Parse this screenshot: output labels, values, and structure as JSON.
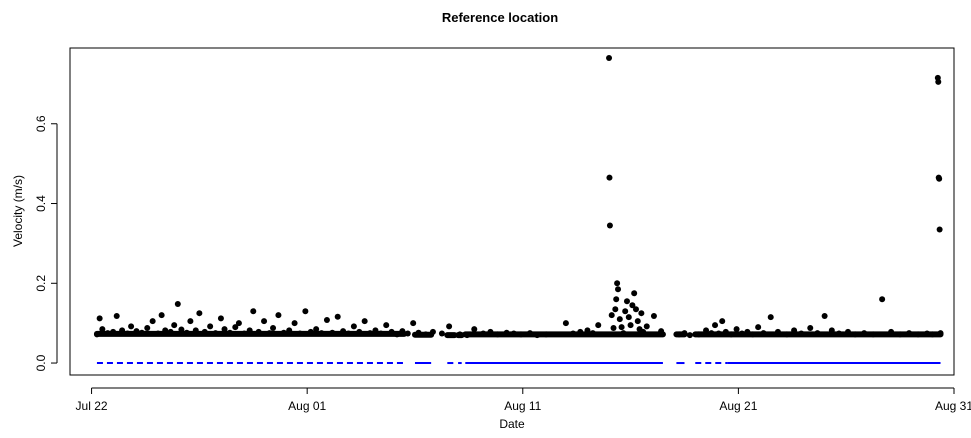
{
  "chart_data": {
    "type": "scatter",
    "title": "Reference location",
    "xlabel": "Date",
    "ylabel": "Velocity (m/s)",
    "xlim": [
      "2019-07-21",
      "2019-08-31"
    ],
    "ylim": [
      -0.03,
      0.79
    ],
    "x_ticks": [
      {
        "date": "2019-07-22",
        "label": "Jul 22"
      },
      {
        "date": "2019-08-01",
        "label": "Aug 01"
      },
      {
        "date": "2019-08-11",
        "label": "Aug 11"
      },
      {
        "date": "2019-08-21",
        "label": "Aug 21"
      },
      {
        "date": "2019-08-31",
        "label": "Aug 31"
      }
    ],
    "y_ticks": [
      {
        "value": 0.0,
        "label": "0.0"
      },
      {
        "value": 0.2,
        "label": "0.2"
      },
      {
        "value": 0.4,
        "label": "0.4"
      },
      {
        "value": 0.6,
        "label": "0.6"
      }
    ],
    "grid": false,
    "legend": "none",
    "series": [
      {
        "kind": "points",
        "color": "#000000",
        "points": [
          [
            "2019-07-22 06:00",
            0.072
          ],
          [
            "2019-07-22 09:00",
            0.112
          ],
          [
            "2019-07-22 12:00",
            0.085
          ],
          [
            "2019-07-22 18:00",
            0.075
          ],
          [
            "2019-07-23 00:00",
            0.078
          ],
          [
            "2019-07-23 04:00",
            0.118
          ],
          [
            "2019-07-23 10:00",
            0.082
          ],
          [
            "2019-07-23 16:00",
            0.074
          ],
          [
            "2019-07-23 20:00",
            0.092
          ],
          [
            "2019-07-24 02:00",
            0.08
          ],
          [
            "2019-07-24 08:00",
            0.076
          ],
          [
            "2019-07-24 14:00",
            0.088
          ],
          [
            "2019-07-24 20:00",
            0.105
          ],
          [
            "2019-07-25 02:00",
            0.074
          ],
          [
            "2019-07-25 06:00",
            0.12
          ],
          [
            "2019-07-25 10:00",
            0.082
          ],
          [
            "2019-07-25 16:00",
            0.078
          ],
          [
            "2019-07-25 20:00",
            0.095
          ],
          [
            "2019-07-26 00:00",
            0.148
          ],
          [
            "2019-07-26 04:00",
            0.084
          ],
          [
            "2019-07-26 10:00",
            0.076
          ],
          [
            "2019-07-26 14:00",
            0.105
          ],
          [
            "2019-07-26 20:00",
            0.082
          ],
          [
            "2019-07-27 00:00",
            0.125
          ],
          [
            "2019-07-27 06:00",
            0.078
          ],
          [
            "2019-07-27 12:00",
            0.092
          ],
          [
            "2019-07-27 18:00",
            0.075
          ],
          [
            "2019-07-28 00:00",
            0.112
          ],
          [
            "2019-07-28 04:00",
            0.085
          ],
          [
            "2019-07-28 10:00",
            0.076
          ],
          [
            "2019-07-28 16:00",
            0.09
          ],
          [
            "2019-07-28 20:00",
            0.1
          ],
          [
            "2019-07-29 02:00",
            0.074
          ],
          [
            "2019-07-29 08:00",
            0.082
          ],
          [
            "2019-07-29 12:00",
            0.13
          ],
          [
            "2019-07-29 18:00",
            0.078
          ],
          [
            "2019-07-30 00:00",
            0.105
          ],
          [
            "2019-07-30 06:00",
            0.075
          ],
          [
            "2019-07-30 10:00",
            0.088
          ],
          [
            "2019-07-30 16:00",
            0.12
          ],
          [
            "2019-07-30 22:00",
            0.076
          ],
          [
            "2019-07-31 04:00",
            0.082
          ],
          [
            "2019-07-31 10:00",
            0.1
          ],
          [
            "2019-07-31 16:00",
            0.074
          ],
          [
            "2019-07-31 22:00",
            0.13
          ],
          [
            "2019-08-01 04:00",
            0.078
          ],
          [
            "2019-08-01 10:00",
            0.085
          ],
          [
            "2019-08-01 16:00",
            0.075
          ],
          [
            "2019-08-01 22:00",
            0.108
          ],
          [
            "2019-08-02 04:00",
            0.076
          ],
          [
            "2019-08-02 10:00",
            0.116
          ],
          [
            "2019-08-02 16:00",
            0.08
          ],
          [
            "2019-08-02 22:00",
            0.074
          ],
          [
            "2019-08-03 04:00",
            0.092
          ],
          [
            "2019-08-03 10:00",
            0.078
          ],
          [
            "2019-08-03 16:00",
            0.105
          ],
          [
            "2019-08-03 22:00",
            0.075
          ],
          [
            "2019-08-04 04:00",
            0.082
          ],
          [
            "2019-08-04 10:00",
            0.074
          ],
          [
            "2019-08-04 16:00",
            0.095
          ],
          [
            "2019-08-04 22:00",
            0.078
          ],
          [
            "2019-08-05 04:00",
            0.072
          ],
          [
            "2019-08-05 10:00",
            0.08
          ],
          [
            "2019-08-05 16:00",
            0.074
          ],
          [
            "2019-08-05 22:00",
            0.1
          ],
          [
            "2019-08-06 04:00",
            0.076
          ],
          [
            "2019-08-06 12:00",
            0.072
          ],
          [
            "2019-08-06 20:00",
            0.078
          ],
          [
            "2019-08-07 06:00",
            0.074
          ],
          [
            "2019-08-07 14:00",
            0.092
          ],
          [
            "2019-08-08 02:00",
            0.072
          ],
          [
            "2019-08-08 10:00",
            0.07
          ],
          [
            "2019-08-08 18:00",
            0.085
          ],
          [
            "2019-08-09 04:00",
            0.074
          ],
          [
            "2019-08-09 12:00",
            0.078
          ],
          [
            "2019-08-09 20:00",
            0.072
          ],
          [
            "2019-08-10 06:00",
            0.076
          ],
          [
            "2019-08-10 14:00",
            0.074
          ],
          [
            "2019-08-10 22:00",
            0.072
          ],
          [
            "2019-08-11 08:00",
            0.075
          ],
          [
            "2019-08-11 16:00",
            0.07
          ],
          [
            "2019-08-12 02:00",
            0.072
          ],
          [
            "2019-08-13 00:00",
            0.1
          ],
          [
            "2019-08-13 08:00",
            0.074
          ],
          [
            "2019-08-13 16:00",
            0.078
          ],
          [
            "2019-08-14 00:00",
            0.082
          ],
          [
            "2019-08-14 06:00",
            0.075
          ],
          [
            "2019-08-14 12:00",
            0.095
          ],
          [
            "2019-08-15 00:00",
            0.765
          ],
          [
            "2019-08-15 00:30",
            0.465
          ],
          [
            "2019-08-15 01:00",
            0.345
          ],
          [
            "2019-08-15 03:00",
            0.12
          ],
          [
            "2019-08-15 05:00",
            0.088
          ],
          [
            "2019-08-15 07:00",
            0.135
          ],
          [
            "2019-08-15 08:00",
            0.16
          ],
          [
            "2019-08-15 09:00",
            0.2
          ],
          [
            "2019-08-15 10:00",
            0.185
          ],
          [
            "2019-08-15 12:00",
            0.11
          ],
          [
            "2019-08-15 14:00",
            0.09
          ],
          [
            "2019-08-15 16:00",
            0.075
          ],
          [
            "2019-08-15 18:00",
            0.13
          ],
          [
            "2019-08-15 20:00",
            0.155
          ],
          [
            "2019-08-15 22:00",
            0.115
          ],
          [
            "2019-08-16 00:00",
            0.095
          ],
          [
            "2019-08-16 02:00",
            0.145
          ],
          [
            "2019-08-16 04:00",
            0.175
          ],
          [
            "2019-08-16 06:00",
            0.135
          ],
          [
            "2019-08-16 08:00",
            0.105
          ],
          [
            "2019-08-16 10:00",
            0.085
          ],
          [
            "2019-08-16 12:00",
            0.125
          ],
          [
            "2019-08-16 14:00",
            0.078
          ],
          [
            "2019-08-16 18:00",
            0.092
          ],
          [
            "2019-08-17 02:00",
            0.118
          ],
          [
            "2019-08-17 10:00",
            0.08
          ],
          [
            "2019-08-18 06:00",
            0.072
          ],
          [
            "2019-08-18 12:00",
            0.075
          ],
          [
            "2019-08-18 18:00",
            0.07
          ],
          [
            "2019-08-19 04:00",
            0.072
          ],
          [
            "2019-08-19 12:00",
            0.082
          ],
          [
            "2019-08-19 18:00",
            0.075
          ],
          [
            "2019-08-19 22:00",
            0.095
          ],
          [
            "2019-08-20 02:00",
            0.074
          ],
          [
            "2019-08-20 06:00",
            0.105
          ],
          [
            "2019-08-20 10:00",
            0.078
          ],
          [
            "2019-08-20 16:00",
            0.072
          ],
          [
            "2019-08-20 22:00",
            0.085
          ],
          [
            "2019-08-21 04:00",
            0.074
          ],
          [
            "2019-08-21 10:00",
            0.078
          ],
          [
            "2019-08-21 16:00",
            0.072
          ],
          [
            "2019-08-21 22:00",
            0.09
          ],
          [
            "2019-08-22 04:00",
            0.075
          ],
          [
            "2019-08-22 12:00",
            0.115
          ],
          [
            "2019-08-22 20:00",
            0.078
          ],
          [
            "2019-08-23 06:00",
            0.072
          ],
          [
            "2019-08-23 14:00",
            0.082
          ],
          [
            "2019-08-23 22:00",
            0.074
          ],
          [
            "2019-08-24 08:00",
            0.088
          ],
          [
            "2019-08-24 16:00",
            0.075
          ],
          [
            "2019-08-25 00:00",
            0.118
          ],
          [
            "2019-08-25 08:00",
            0.082
          ],
          [
            "2019-08-25 16:00",
            0.074
          ],
          [
            "2019-08-26 02:00",
            0.078
          ],
          [
            "2019-08-26 10:00",
            0.072
          ],
          [
            "2019-08-26 20:00",
            0.075
          ],
          [
            "2019-08-27 06:00",
            0.072
          ],
          [
            "2019-08-27 16:00",
            0.16
          ],
          [
            "2019-08-28 02:00",
            0.078
          ],
          [
            "2019-08-28 12:00",
            0.072
          ],
          [
            "2019-08-28 22:00",
            0.075
          ],
          [
            "2019-08-29 08:00",
            0.072
          ],
          [
            "2019-08-29 18:00",
            0.074
          ],
          [
            "2019-08-30 00:00",
            0.072
          ],
          [
            "2019-08-30 06:00",
            0.715
          ],
          [
            "2019-08-30 06:30",
            0.705
          ],
          [
            "2019-08-30 07:00",
            0.465
          ],
          [
            "2019-08-30 07:30",
            0.462
          ],
          [
            "2019-08-30 08:00",
            0.335
          ],
          [
            "2019-08-30 09:00",
            0.075
          ]
        ]
      },
      {
        "kind": "dense-band",
        "color": "#000000",
        "band": [
          {
            "from": "2019-07-22 06:00",
            "to": "2019-08-05 12:00",
            "y": 0.073
          },
          {
            "from": "2019-08-06 00:00",
            "to": "2019-08-06 18:00",
            "y": 0.071
          },
          {
            "from": "2019-08-07 12:00",
            "to": "2019-08-07 20:00",
            "y": 0.07
          },
          {
            "from": "2019-08-08 00:00",
            "to": "2019-08-08 04:00",
            "y": 0.07
          },
          {
            "from": "2019-08-08 08:00",
            "to": "2019-08-17 12:00",
            "y": 0.072
          },
          {
            "from": "2019-08-18 03:00",
            "to": "2019-08-18 12:00",
            "y": 0.072
          },
          {
            "from": "2019-08-19 00:00",
            "to": "2019-08-30 09:00",
            "y": 0.072
          }
        ]
      },
      {
        "kind": "baseline",
        "color": "#0000ff",
        "y": 0.0,
        "segments": [
          {
            "from": "2019-07-22 06:00",
            "to": "2019-08-05 12:00",
            "style": "dashed"
          },
          {
            "from": "2019-08-06 00:00",
            "to": "2019-08-06 18:00",
            "style": "solid"
          },
          {
            "from": "2019-08-07 12:00",
            "to": "2019-08-07 20:00",
            "style": "dashed"
          },
          {
            "from": "2019-08-08 00:00",
            "to": "2019-08-08 04:00",
            "style": "solid"
          },
          {
            "from": "2019-08-08 08:00",
            "to": "2019-08-17 12:00",
            "style": "solid"
          },
          {
            "from": "2019-08-18 03:00",
            "to": "2019-08-18 12:00",
            "style": "solid"
          },
          {
            "from": "2019-08-19 00:00",
            "to": "2019-08-20 12:00",
            "style": "dashed"
          },
          {
            "from": "2019-08-20 12:00",
            "to": "2019-08-30 09:00",
            "style": "solid"
          }
        ]
      }
    ]
  }
}
